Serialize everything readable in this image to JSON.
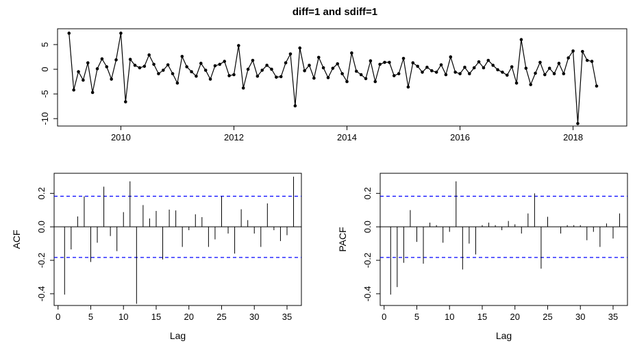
{
  "figure": {
    "title": "diff=1 and sdiff=1"
  },
  "chart_data": [
    {
      "type": "line",
      "title": "diff=1 and sdiff=1",
      "xlabel": "",
      "ylabel": "",
      "xlim": [
        2008.88,
        2018.95
      ],
      "ylim": [
        -11.5,
        8.2
      ],
      "xticks": [
        2010,
        2012,
        2014,
        2016,
        2018
      ],
      "xtick_labels": [
        "2010",
        "2012",
        "2014",
        "2016",
        "2018"
      ],
      "yticks": [
        -10,
        -5,
        0,
        5
      ],
      "ytick_labels": [
        "-10",
        "-5",
        "0",
        "5"
      ],
      "x_start": 2009.0833,
      "x_step": 0.083333,
      "values": [
        7.3,
        -4.2,
        -0.5,
        -2.2,
        1.3,
        -4.7,
        0.1,
        2.1,
        0.5,
        -2.0,
        1.9,
        7.3,
        -6.6,
        2.0,
        0.8,
        0.3,
        0.6,
        2.9,
        1.0,
        -0.9,
        -0.2,
        0.9,
        -0.9,
        -2.8,
        2.6,
        0.5,
        -0.5,
        -1.4,
        1.2,
        -0.2,
        -2.0,
        0.7,
        1.0,
        1.6,
        -1.3,
        -1.1,
        4.8,
        -3.8,
        0.0,
        1.8,
        -1.4,
        -0.2,
        0.8,
        0.0,
        -1.6,
        -1.5,
        1.3,
        3.1,
        -7.4,
        4.3,
        -0.3,
        0.8,
        -1.8,
        2.4,
        0.3,
        -1.7,
        0.2,
        1.1,
        -0.9,
        -2.5,
        3.3,
        -0.4,
        -1.1,
        -1.9,
        1.7,
        -2.5,
        1.0,
        1.4,
        1.4,
        -1.3,
        -0.9,
        2.2,
        -3.6,
        1.3,
        0.6,
        -0.6,
        0.4,
        -0.3,
        -0.6,
        0.9,
        -1.1,
        2.5,
        -0.6,
        -0.9,
        0.4,
        -0.9,
        0.3,
        1.5,
        0.3,
        1.8,
        0.8,
        -0.1,
        -0.6,
        -1.2,
        0.5,
        -2.8,
        6.0,
        0.2,
        -3.1,
        -0.8,
        1.4,
        -1.1,
        0.2,
        -0.9,
        1.2,
        -0.9,
        2.3,
        3.7,
        -11.0,
        3.6,
        1.8,
        1.6,
        -3.4
      ]
    },
    {
      "type": "bar",
      "title": "",
      "xlabel": "Lag",
      "ylabel": "ACF",
      "xlim": [
        -0.6,
        37.2
      ],
      "ylim": [
        -0.47,
        0.32
      ],
      "xticks": [
        0,
        5,
        10,
        15,
        20,
        25,
        30,
        35
      ],
      "xtick_labels": [
        "0",
        "5",
        "10",
        "15",
        "20",
        "25",
        "30",
        "35"
      ],
      "yticks": [
        -0.4,
        -0.2,
        0.0,
        0.2
      ],
      "ytick_labels": [
        "-0.4",
        "-0.2",
        "0.0",
        "0.2"
      ],
      "significance_bounds": [
        0.183,
        -0.183
      ],
      "lags": [
        1,
        2,
        3,
        4,
        5,
        6,
        7,
        8,
        9,
        10,
        11,
        12,
        13,
        14,
        15,
        16,
        17,
        18,
        19,
        20,
        21,
        22,
        23,
        24,
        25,
        26,
        27,
        28,
        29,
        30,
        31,
        32,
        33,
        34,
        35,
        36
      ],
      "values": [
        -0.405,
        -0.135,
        0.062,
        0.182,
        -0.21,
        -0.095,
        0.24,
        -0.055,
        -0.145,
        0.088,
        0.272,
        -0.46,
        0.13,
        0.05,
        0.095,
        -0.195,
        0.103,
        0.098,
        -0.12,
        -0.02,
        0.075,
        0.058,
        -0.12,
        -0.075,
        0.182,
        -0.04,
        -0.16,
        0.105,
        0.04,
        -0.04,
        -0.12,
        0.14,
        -0.02,
        -0.085,
        -0.05,
        0.3
      ]
    },
    {
      "type": "bar",
      "title": "",
      "xlabel": "Lag",
      "ylabel": "PACF",
      "xlim": [
        -0.6,
        37.2
      ],
      "ylim": [
        -0.47,
        0.32
      ],
      "xticks": [
        0,
        5,
        10,
        15,
        20,
        25,
        30,
        35
      ],
      "xtick_labels": [
        "0",
        "5",
        "10",
        "15",
        "20",
        "25",
        "30",
        "35"
      ],
      "yticks": [
        -0.4,
        -0.2,
        0.0,
        0.2
      ],
      "ytick_labels": [
        "-0.4",
        "-0.2",
        "0.0",
        "0.2"
      ],
      "significance_bounds": [
        0.183,
        -0.183
      ],
      "lags": [
        1,
        2,
        3,
        4,
        5,
        6,
        7,
        8,
        9,
        10,
        11,
        12,
        13,
        14,
        15,
        16,
        17,
        18,
        19,
        20,
        21,
        22,
        23,
        24,
        25,
        26,
        27,
        28,
        29,
        30,
        31,
        32,
        33,
        34,
        35,
        36
      ],
      "values": [
        -0.405,
        -0.36,
        -0.215,
        0.1,
        -0.09,
        -0.22,
        0.025,
        0.01,
        -0.095,
        -0.03,
        0.272,
        -0.255,
        -0.1,
        -0.165,
        0.01,
        0.025,
        0.01,
        -0.02,
        0.035,
        0.015,
        -0.04,
        0.08,
        0.2,
        -0.25,
        0.06,
        0.0,
        -0.04,
        0.01,
        0.01,
        0.01,
        -0.08,
        -0.03,
        -0.12,
        0.02,
        -0.07,
        0.08
      ]
    }
  ],
  "colors": {
    "series": "#000000",
    "significance": "#0000ff",
    "axis": "#000000"
  }
}
